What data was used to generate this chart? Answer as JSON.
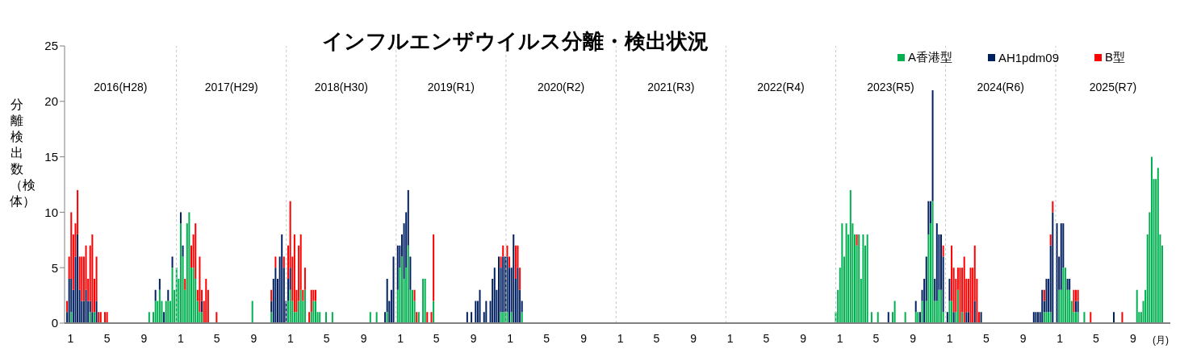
{
  "chart_data": {
    "type": "bar",
    "title": "インフルエンザウイルス分離・検出状況",
    "ylabel": "分離検出数（検体）",
    "xlabel": "(月)",
    "stacked": true,
    "legend": "top right",
    "xlim": [
      "2015-12-26",
      "2026-01-17"
    ],
    "ylim": [
      0,
      25
    ],
    "yticks": [
      0,
      5,
      10,
      15,
      20,
      25
    ],
    "xticks": [
      {
        "value": "2016-01-15",
        "label": "1"
      },
      {
        "value": "2016-05-15",
        "label": "5"
      },
      {
        "value": "2016-09-15",
        "label": "9"
      },
      {
        "value": "2017-01-15",
        "label": "1"
      },
      {
        "value": "2017-05-15",
        "label": "5"
      },
      {
        "value": "2017-09-15",
        "label": "9"
      },
      {
        "value": "2018-01-15",
        "label": "1"
      },
      {
        "value": "2018-05-15",
        "label": "5"
      },
      {
        "value": "2018-09-15",
        "label": "9"
      },
      {
        "value": "2019-01-15",
        "label": "1"
      },
      {
        "value": "2019-05-15",
        "label": "5"
      },
      {
        "value": "2019-09-15",
        "label": "9"
      },
      {
        "value": "2020-01-15",
        "label": "1"
      },
      {
        "value": "2020-05-15",
        "label": "5"
      },
      {
        "value": "2020-09-15",
        "label": "9"
      },
      {
        "value": "2021-01-15",
        "label": "1"
      },
      {
        "value": "2021-05-15",
        "label": "5"
      },
      {
        "value": "2021-09-15",
        "label": "9"
      },
      {
        "value": "2022-01-15",
        "label": "1"
      },
      {
        "value": "2022-05-15",
        "label": "5"
      },
      {
        "value": "2022-09-15",
        "label": "9"
      },
      {
        "value": "2023-01-15",
        "label": "1"
      },
      {
        "value": "2023-05-15",
        "label": "5"
      },
      {
        "value": "2023-09-15",
        "label": "9"
      },
      {
        "value": "2024-01-15",
        "label": "1"
      },
      {
        "value": "2024-05-15",
        "label": "5"
      },
      {
        "value": "2024-09-15",
        "label": "9"
      },
      {
        "value": "2025-01-15",
        "label": "1"
      },
      {
        "value": "2025-05-15",
        "label": "5"
      },
      {
        "value": "2025-09-15",
        "label": "9"
      }
    ],
    "ref_lines": [
      {
        "axis": "x",
        "value": "2017-01-01",
        "color": "#c8c8c8",
        "line_style": "dashed"
      },
      {
        "axis": "x",
        "value": "2018-01-01",
        "color": "#c8c8c8",
        "line_style": "dashed"
      },
      {
        "axis": "x",
        "value": "2019-01-01",
        "color": "#c8c8c8",
        "line_style": "dashed"
      },
      {
        "axis": "x",
        "value": "2020-01-01",
        "color": "#c8c8c8",
        "line_style": "dashed"
      },
      {
        "axis": "x",
        "value": "2021-01-01",
        "color": "#c8c8c8",
        "line_style": "dashed"
      },
      {
        "axis": "x",
        "value": "2022-01-01",
        "color": "#c8c8c8",
        "line_style": "dashed"
      },
      {
        "axis": "x",
        "value": "2023-01-01",
        "color": "#c8c8c8",
        "line_style": "dashed"
      },
      {
        "axis": "x",
        "value": "2024-01-01",
        "color": "#c8c8c8",
        "line_style": "dashed"
      },
      {
        "axis": "x",
        "value": "2025-01-01",
        "color": "#c8c8c8",
        "line_style": "dashed"
      }
    ],
    "annotations": [
      "2016(H28)",
      "2017(H29)",
      "2018(H30)",
      "2019(R1)",
      "2020(R2)",
      "2021(R3)",
      "2022(R4)",
      "2023(R5)",
      "2024(R6)",
      "2025(R7)"
    ],
    "x": [
      "2016-01-04",
      "2016-01-11",
      "2016-01-18",
      "2016-01-25",
      "2016-02-01",
      "2016-02-08",
      "2016-02-15",
      "2016-02-22",
      "2016-02-29",
      "2016-03-07",
      "2016-03-14",
      "2016-03-21",
      "2016-03-28",
      "2016-04-04",
      "2016-04-11",
      "2016-04-18",
      "2016-04-25",
      "2016-05-09",
      "2016-05-16",
      "2016-10-03",
      "2016-10-17",
      "2016-10-24",
      "2016-10-31",
      "2016-11-07",
      "2016-11-14",
      "2016-11-21",
      "2016-11-28",
      "2016-12-05",
      "2016-12-12",
      "2016-12-19",
      "2016-12-26",
      "2017-01-02",
      "2017-01-09",
      "2017-01-16",
      "2017-01-23",
      "2017-01-30",
      "2017-02-06",
      "2017-02-13",
      "2017-02-20",
      "2017-02-27",
      "2017-03-06",
      "2017-03-13",
      "2017-03-20",
      "2017-03-27",
      "2017-04-03",
      "2017-04-10",
      "2017-04-17",
      "2017-05-15",
      "2017-09-11",
      "2017-11-13",
      "2017-11-20",
      "2017-11-27",
      "2017-12-04",
      "2017-12-11",
      "2017-12-18",
      "2017-12-25",
      "2018-01-01",
      "2018-01-08",
      "2018-01-15",
      "2018-01-22",
      "2018-01-29",
      "2018-02-05",
      "2018-02-12",
      "2018-02-19",
      "2018-02-26",
      "2018-03-05",
      "2018-03-19",
      "2018-03-26",
      "2018-04-02",
      "2018-04-09",
      "2018-04-16",
      "2018-04-23",
      "2018-05-14",
      "2018-06-04",
      "2018-10-08",
      "2018-10-29",
      "2018-11-26",
      "2018-12-03",
      "2018-12-10",
      "2018-12-17",
      "2018-12-24",
      "2019-01-07",
      "2019-01-14",
      "2019-01-21",
      "2019-01-28",
      "2019-02-04",
      "2019-02-11",
      "2019-02-18",
      "2019-02-25",
      "2019-03-04",
      "2019-03-11",
      "2019-03-18",
      "2019-04-01",
      "2019-04-08",
      "2019-04-15",
      "2019-04-29",
      "2019-05-06",
      "2019-08-26",
      "2019-09-09",
      "2019-09-23",
      "2019-09-30",
      "2019-10-07",
      "2019-10-21",
      "2019-10-28",
      "2019-11-11",
      "2019-11-18",
      "2019-11-25",
      "2019-12-02",
      "2019-12-09",
      "2019-12-16",
      "2019-12-23",
      "2019-12-30",
      "2020-01-06",
      "2020-01-13",
      "2020-01-20",
      "2020-01-27",
      "2020-02-03",
      "2020-02-10",
      "2020-02-17",
      "2020-02-24",
      "2023-01-02",
      "2023-01-09",
      "2023-01-16",
      "2023-01-23",
      "2023-01-30",
      "2023-02-06",
      "2023-02-13",
      "2023-02-20",
      "2023-02-27",
      "2023-03-06",
      "2023-03-13",
      "2023-03-20",
      "2023-03-27",
      "2023-04-03",
      "2023-04-10",
      "2023-04-17",
      "2023-05-01",
      "2023-05-22",
      "2023-06-26",
      "2023-07-10",
      "2023-07-17",
      "2023-08-21",
      "2023-09-25",
      "2023-10-02",
      "2023-10-09",
      "2023-10-16",
      "2023-10-23",
      "2023-10-30",
      "2023-11-06",
      "2023-11-13",
      "2023-11-20",
      "2023-11-27",
      "2023-12-04",
      "2023-12-11",
      "2023-12-18",
      "2023-12-25",
      "2024-01-08",
      "2024-01-15",
      "2024-01-22",
      "2024-01-29",
      "2024-02-05",
      "2024-02-12",
      "2024-02-19",
      "2024-02-26",
      "2024-03-04",
      "2024-03-11",
      "2024-03-18",
      "2024-03-25",
      "2024-04-01",
      "2024-04-08",
      "2024-04-15",
      "2024-04-22",
      "2024-04-29",
      "2024-10-21",
      "2024-10-28",
      "2024-11-04",
      "2024-11-11",
      "2024-11-18",
      "2024-11-25",
      "2024-12-02",
      "2024-12-09",
      "2024-12-16",
      "2024-12-23",
      "2025-01-06",
      "2025-01-13",
      "2025-01-20",
      "2025-01-27",
      "2025-02-03",
      "2025-02-10",
      "2025-02-17",
      "2025-02-24",
      "2025-03-03",
      "2025-03-10",
      "2025-03-17",
      "2025-04-07",
      "2025-04-28",
      "2025-07-14",
      "2025-08-11",
      "2025-09-29",
      "2025-10-06",
      "2025-10-13",
      "2025-10-20",
      "2025-10-27",
      "2025-11-03",
      "2025-11-10",
      "2025-11-17",
      "2025-11-24",
      "2025-12-01",
      "2025-12-08",
      "2025-12-15",
      "2025-12-22"
    ],
    "series": [
      {
        "name": "A香港型",
        "color": "#00b050",
        "values": [
          0,
          0,
          1,
          0,
          0,
          0,
          0,
          0,
          0,
          0,
          0,
          1,
          0,
          1,
          0,
          0,
          0,
          0,
          0,
          1,
          1,
          2,
          2,
          3,
          2,
          0,
          2,
          2,
          2,
          5,
          3,
          5,
          4,
          9,
          6,
          3,
          9,
          10,
          5,
          5,
          4,
          2,
          1,
          1,
          0,
          0,
          0,
          0,
          2,
          1,
          0,
          0,
          0,
          0,
          0,
          0,
          0,
          2,
          3,
          2,
          1,
          1,
          2,
          3,
          2,
          3,
          0,
          1,
          2,
          2,
          1,
          1,
          1,
          1,
          1,
          1,
          0,
          1,
          0,
          0,
          0,
          3,
          5,
          6,
          4,
          5,
          7,
          3,
          3,
          2,
          0,
          1,
          4,
          4,
          0,
          0,
          2,
          0,
          0,
          0,
          0,
          0,
          0,
          0,
          0,
          0,
          0,
          0,
          0,
          1,
          1,
          1,
          1,
          0,
          1,
          0,
          0,
          0,
          0,
          1,
          1,
          3,
          5,
          9,
          6,
          9,
          8,
          12,
          9,
          8,
          7,
          8,
          4,
          8,
          7,
          8,
          1,
          1,
          0,
          1,
          2,
          1,
          1,
          1,
          0,
          2,
          0,
          2,
          8,
          9,
          11,
          2,
          2,
          3,
          3,
          1,
          0,
          2,
          2,
          0,
          1,
          3,
          0,
          1,
          0,
          0,
          0,
          0,
          0,
          0,
          0,
          0,
          0,
          0,
          0,
          0,
          0,
          0,
          1,
          1,
          1,
          1,
          0,
          0,
          3,
          3,
          5,
          5,
          3,
          3,
          2,
          1,
          1,
          1,
          1,
          0,
          0,
          0,
          3,
          1,
          1,
          2,
          3,
          8,
          10,
          15,
          13,
          13,
          14,
          8,
          7
        ]
      },
      {
        "name": "AH1pdm09",
        "color": "#002060",
        "values": [
          1,
          4,
          3,
          3,
          6,
          8,
          3,
          2,
          2,
          3,
          2,
          1,
          1,
          0,
          2,
          0,
          0,
          0,
          0,
          0,
          0,
          1,
          0,
          1,
          0,
          1,
          0,
          1,
          0,
          1,
          0,
          0,
          0,
          1,
          1,
          0,
          0,
          0,
          0,
          0,
          0,
          0,
          0,
          1,
          0,
          0,
          0,
          0,
          0,
          1,
          4,
          5,
          4,
          6,
          8,
          5,
          2,
          2,
          2,
          0,
          0,
          0,
          0,
          0,
          0,
          0,
          0,
          0,
          0,
          0,
          0,
          0,
          0,
          0,
          0,
          0,
          1,
          3,
          2,
          3,
          6,
          4,
          2,
          2,
          5,
          5,
          5,
          3,
          0,
          0,
          0,
          0,
          0,
          0,
          0,
          0,
          0,
          1,
          1,
          2,
          2,
          3,
          1,
          2,
          2,
          4,
          5,
          3,
          6,
          4,
          5,
          5,
          5,
          5,
          4,
          8,
          4,
          5,
          3,
          1,
          0,
          0,
          0,
          0,
          0,
          0,
          0,
          0,
          0,
          0,
          0,
          0,
          0,
          0,
          0,
          0,
          0,
          0,
          1,
          0,
          0,
          0,
          1,
          0,
          1,
          1,
          4,
          4,
          3,
          2,
          10,
          2,
          7,
          5,
          5,
          5,
          1,
          2,
          0,
          1,
          0,
          0,
          0,
          0,
          0,
          1,
          1,
          0,
          0,
          2,
          0,
          0,
          1,
          1,
          1,
          1,
          1,
          3,
          1,
          3,
          3,
          6,
          10,
          9,
          3,
          6,
          4,
          0,
          1,
          1,
          0,
          0,
          1,
          1,
          0,
          0,
          1,
          0,
          0,
          0,
          0,
          0,
          0,
          0,
          0,
          0,
          0,
          0,
          0,
          0,
          0
        ]
      },
      {
        "name": "B型",
        "color": "#ff0000",
        "values": [
          1,
          2,
          6,
          5,
          3,
          4,
          3,
          4,
          4,
          4,
          2,
          5,
          7,
          3,
          4,
          1,
          1,
          1,
          1,
          0,
          0,
          0,
          0,
          0,
          0,
          0,
          0,
          0,
          0,
          0,
          0,
          0,
          0,
          0,
          0,
          1,
          0,
          0,
          2,
          3,
          5,
          1,
          5,
          1,
          2,
          4,
          3,
          1,
          0,
          1,
          0,
          1,
          0,
          0,
          0,
          1,
          0,
          3,
          6,
          4,
          7,
          2,
          5,
          5,
          1,
          2,
          1,
          2,
          1,
          1,
          0,
          0,
          0,
          0,
          0,
          0,
          0,
          0,
          0,
          0,
          0,
          0,
          0,
          0,
          0,
          0,
          0,
          0,
          0,
          1,
          1,
          0,
          0,
          0,
          1,
          1,
          6,
          0,
          0,
          0,
          0,
          0,
          0,
          0,
          0,
          0,
          0,
          0,
          0,
          1,
          1,
          0,
          1,
          1,
          0,
          0,
          3,
          2,
          2,
          0,
          0,
          0,
          0,
          0,
          0,
          0,
          0,
          0,
          0,
          0,
          1,
          0,
          0,
          0,
          0,
          0,
          0,
          0,
          0,
          0,
          0,
          0,
          0,
          0,
          0,
          0,
          0,
          0,
          0,
          0,
          0,
          0,
          0,
          0,
          0,
          1,
          0,
          0,
          5,
          4,
          3,
          2,
          5,
          4,
          6,
          3,
          3,
          5,
          5,
          5,
          4,
          1,
          0,
          0,
          0,
          0,
          0,
          0,
          1,
          0,
          0,
          1,
          1,
          0,
          0,
          0,
          0,
          0,
          0,
          0,
          0,
          2,
          1,
          1,
          0,
          1,
          0,
          1,
          0,
          0,
          0,
          0,
          0,
          0,
          0,
          0,
          0,
          0,
          0,
          0,
          0
        ]
      }
    ]
  }
}
